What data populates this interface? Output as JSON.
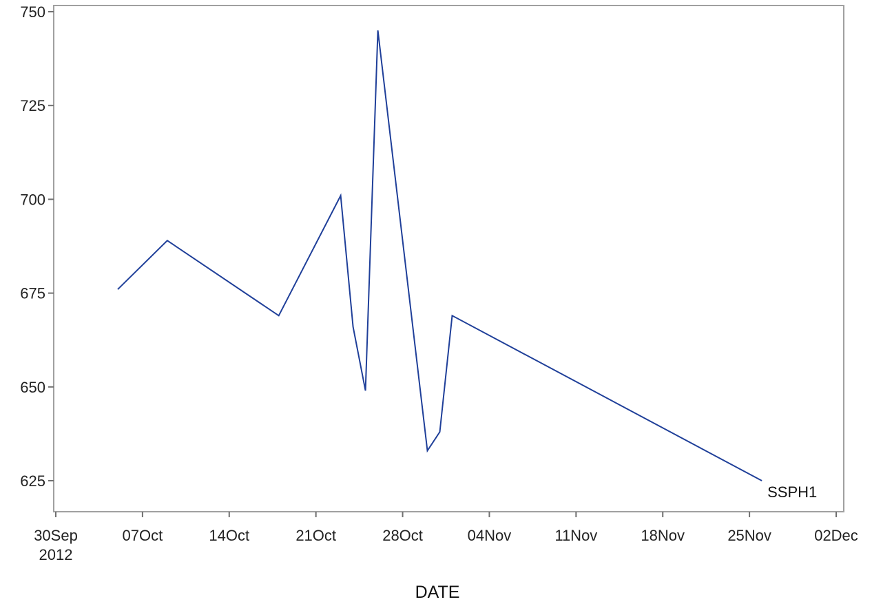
{
  "chart_data": {
    "type": "line",
    "title": "",
    "xlabel": "DATE",
    "ylabel": "",
    "x_tick_labels": [
      {
        "date": "2012-09-30",
        "line1": "30Sep",
        "line2": "2012"
      },
      {
        "date": "2012-10-07",
        "line1": "07Oct",
        "line2": ""
      },
      {
        "date": "2012-10-14",
        "line1": "14Oct",
        "line2": ""
      },
      {
        "date": "2012-10-21",
        "line1": "21Oct",
        "line2": ""
      },
      {
        "date": "2012-10-28",
        "line1": "28Oct",
        "line2": ""
      },
      {
        "date": "2012-11-04",
        "line1": "04Nov",
        "line2": ""
      },
      {
        "date": "2012-11-11",
        "line1": "11Nov",
        "line2": ""
      },
      {
        "date": "2012-11-18",
        "line1": "18Nov",
        "line2": ""
      },
      {
        "date": "2012-11-25",
        "line1": "25Nov",
        "line2": ""
      },
      {
        "date": "2012-12-02",
        "line1": "02Dec",
        "line2": ""
      }
    ],
    "y_ticks": [
      625,
      650,
      675,
      700,
      725,
      750
    ],
    "xlim": [
      "2012-09-30",
      "2012-12-02"
    ],
    "ylim": [
      620,
      750
    ],
    "grid": false,
    "series": [
      {
        "name": "SSPH1",
        "color": "#1f3f99",
        "x": [
          "2012-10-05",
          "2012-10-09",
          "2012-10-18",
          "2012-10-23",
          "2012-10-24",
          "2012-10-25",
          "2012-10-26",
          "2012-10-30",
          "2012-10-31",
          "2012-11-01",
          "2012-11-26"
        ],
        "y": [
          676,
          689,
          669,
          701,
          666,
          649,
          745,
          633,
          638,
          669,
          625
        ]
      }
    ]
  }
}
